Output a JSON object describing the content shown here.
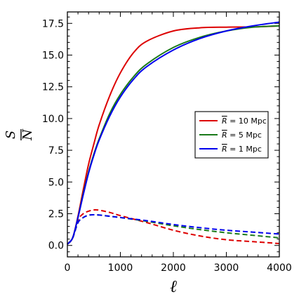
{
  "chart_data": {
    "type": "line",
    "xlabel": "ℓ",
    "ylabel": {
      "numerator": "S",
      "denominator": "N"
    },
    "xlim": [
      0,
      4000
    ],
    "ylim": [
      -0.9,
      18.4
    ],
    "xticks": [
      0,
      1000,
      2000,
      3000,
      4000
    ],
    "xtick_labels": [
      "0",
      "1000",
      "2000",
      "3000",
      "4000"
    ],
    "yticks": [
      0.0,
      2.5,
      5.0,
      7.5,
      10.0,
      12.5,
      15.0,
      17.5
    ],
    "ytick_labels": [
      "0.0",
      "2.5",
      "5.0",
      "7.5",
      "10.0",
      "12.5",
      "15.0",
      "17.5"
    ],
    "minor_x_step": 200,
    "minor_y_step": 0.5,
    "grid": false,
    "legend_position": "center-right",
    "series": [
      {
        "name": "R̄ = 10 Mpc",
        "legend_r": "R",
        "legend_rest": " = 10 Mpc",
        "color": "#dd0000",
        "style": "solid",
        "x": [
          0,
          100,
          200,
          300,
          400,
          500,
          600,
          800,
          1000,
          1250,
          1500,
          2000,
          2500,
          3000,
          3500,
          4000
        ],
        "y": [
          0.1,
          0.6,
          2.3,
          4.4,
          6.4,
          8.0,
          9.5,
          11.8,
          13.6,
          15.2,
          16.1,
          16.9,
          17.15,
          17.2,
          17.22,
          17.3
        ]
      },
      {
        "name": "R̄ = 5 Mpc",
        "legend_r": "R",
        "legend_rest": " = 5 Mpc",
        "color": "#1a7a1a",
        "style": "solid",
        "x": [
          0,
          100,
          200,
          300,
          400,
          500,
          600,
          800,
          1000,
          1250,
          1500,
          2000,
          2500,
          3000,
          3500,
          4000
        ],
        "y": [
          0.1,
          0.6,
          2.2,
          4.1,
          5.8,
          7.2,
          8.4,
          10.4,
          11.9,
          13.3,
          14.3,
          15.6,
          16.4,
          16.9,
          17.2,
          17.3
        ]
      },
      {
        "name": "R̄ = 1 Mpc",
        "legend_r": "R",
        "legend_rest": " = 1 Mpc",
        "color": "#0000ee",
        "style": "solid",
        "x": [
          0,
          100,
          200,
          300,
          400,
          500,
          600,
          800,
          1000,
          1250,
          1500,
          2000,
          2500,
          3000,
          3500,
          4000
        ],
        "y": [
          0.1,
          0.6,
          2.2,
          4.0,
          5.7,
          7.1,
          8.3,
          10.2,
          11.7,
          13.1,
          14.1,
          15.4,
          16.3,
          16.9,
          17.3,
          17.6
        ]
      },
      {
        "color": "#dd0000",
        "style": "dashed",
        "x": [
          0,
          100,
          200,
          300,
          400,
          500,
          600,
          800,
          1000,
          1500,
          2000,
          2500,
          3000,
          3500,
          4000
        ],
        "y": [
          0.1,
          0.6,
          2.0,
          2.5,
          2.7,
          2.8,
          2.78,
          2.6,
          2.35,
          1.8,
          1.2,
          0.75,
          0.45,
          0.3,
          0.15
        ]
      },
      {
        "color": "#1a7a1a",
        "style": "dashed",
        "x": [
          0,
          100,
          200,
          300,
          400,
          500,
          600,
          800,
          1000,
          1500,
          2000,
          2500,
          3000,
          3500,
          4000
        ],
        "y": [
          0.1,
          0.6,
          1.8,
          2.2,
          2.38,
          2.42,
          2.4,
          2.3,
          2.2,
          1.9,
          1.55,
          1.25,
          1.0,
          0.8,
          0.6
        ]
      },
      {
        "color": "#0000ee",
        "style": "dashed",
        "x": [
          0,
          100,
          200,
          300,
          400,
          500,
          600,
          800,
          1000,
          1500,
          2000,
          2500,
          3000,
          3500,
          4000
        ],
        "y": [
          0.1,
          0.6,
          1.8,
          2.2,
          2.38,
          2.42,
          2.4,
          2.3,
          2.2,
          1.95,
          1.65,
          1.4,
          1.2,
          1.05,
          0.9
        ]
      }
    ]
  }
}
